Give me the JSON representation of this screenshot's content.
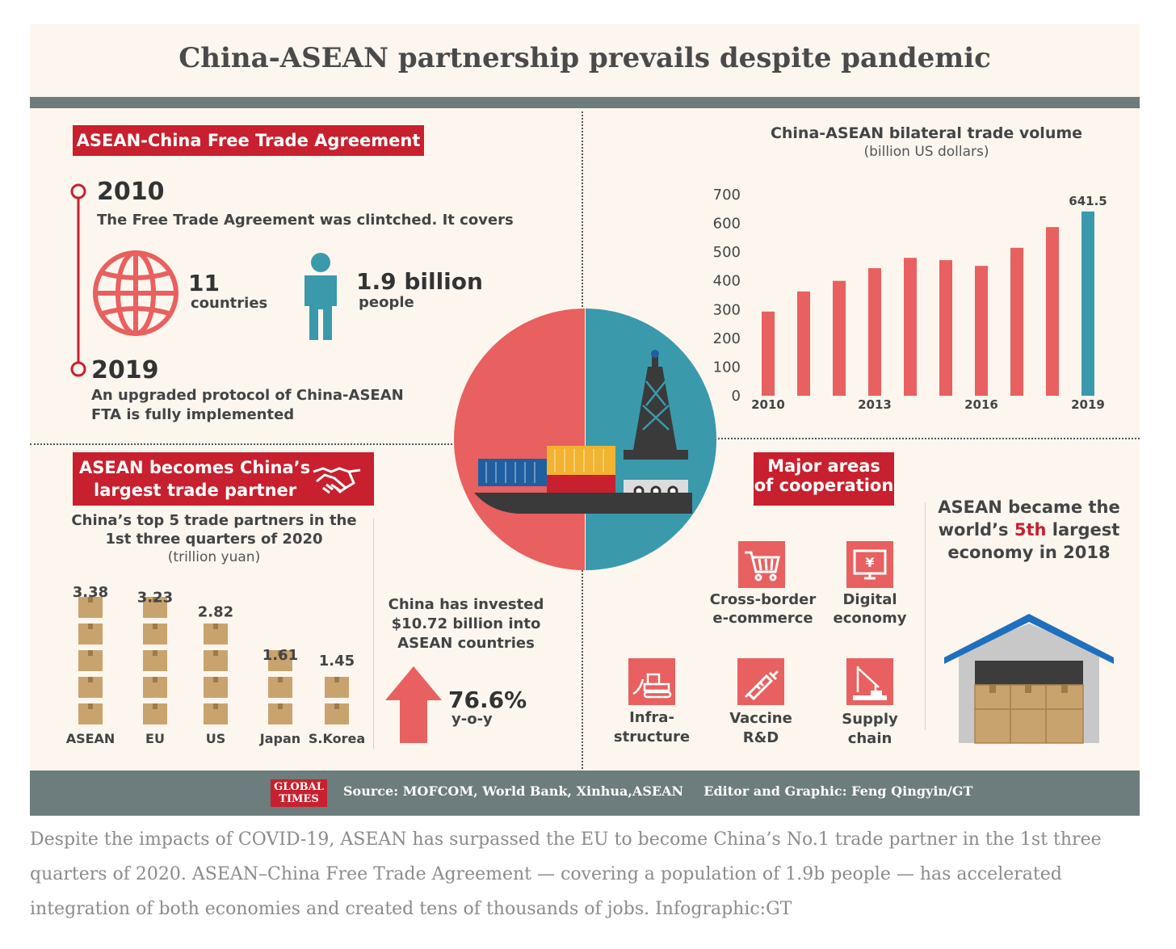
{
  "title": "China-ASEAN partnership prevails despite pandemic",
  "fta": {
    "heading": "ASEAN-China  Free Trade Agreement",
    "year1": "2010",
    "year1_text": "The Free Trade Agreement was clintched. It covers",
    "countries_num": "11",
    "countries_label": "countries",
    "people_num": "1.9 billion",
    "people_label": "people",
    "year2": "2019",
    "year2_text_line1": "An upgraded protocol of China-ASEAN",
    "year2_text_line2": "FTA is fully implemented"
  },
  "partner": {
    "heading_line1": "ASEAN becomes China’s",
    "heading_line2": "largest trade partner",
    "sub_line1": "China’s top 5 trade partners in the",
    "sub_line2": "1st three quarters of 2020",
    "sub_unit": "(trillion yuan)"
  },
  "invest": {
    "line1": "China has invested",
    "line2": "$10.72 billion into",
    "line3": "ASEAN countries",
    "pct": "76.6%",
    "pct_label": "y-o-y"
  },
  "cooperation": {
    "heading_line1": "Major areas",
    "heading_line2": "of cooperation",
    "items": [
      {
        "line1": "Cross-border",
        "line2": "e-commerce",
        "icon": "shopping-cart-icon"
      },
      {
        "line1": "Digital",
        "line2": "economy",
        "icon": "digital-screen-icon"
      },
      {
        "line1": "Infra-",
        "line2": "structure",
        "icon": "bulldozer-icon"
      },
      {
        "line1": "Vaccine",
        "line2": "R&D",
        "icon": "syringe-icon"
      },
      {
        "line1": "Supply",
        "line2": "chain",
        "icon": "crane-icon"
      }
    ]
  },
  "economy": {
    "line1": "ASEAN became the",
    "line2_pre": "world’s ",
    "line2_hl": "5th",
    "line2_post": " largest",
    "line3": "economy in 2018"
  },
  "footer": {
    "logo_line1": "GLOBAL",
    "logo_line2": "TIMES",
    "source": "Source: MOFCOM, World Bank, Xinhua,ASEAN",
    "editor": "Editor and Graphic: Feng Qingyin/GT"
  },
  "caption": "Despite the impacts of COVID-19, ASEAN has surpassed the EU to become China’s No.1 trade partner in the 1st three quarters of 2020. ASEAN–China Free Trade Agreement — covering a population of 1.9b people — has accelerated integration of both economies and created tens of thousands of jobs. Infographic:GT",
  "colors": {
    "red": "#e8605f",
    "teal": "#3a9aab",
    "tag": "#c8202e",
    "box": "#c9a36e"
  },
  "chart_data": [
    {
      "type": "bar",
      "title": "China-ASEAN bilateral trade volume",
      "subtitle": "(billion US dollars)",
      "categories": [
        "2010",
        "2011",
        "2012",
        "2013",
        "2014",
        "2015",
        "2016",
        "2017",
        "2018",
        "2019"
      ],
      "tick_labels": [
        "2010",
        "",
        "",
        "2013",
        "",
        "",
        "2016",
        "",
        "",
        "2019"
      ],
      "values": [
        293,
        363,
        400,
        444,
        480,
        472,
        452,
        515,
        587,
        641.5
      ],
      "highlight_label": "641.5",
      "yticks": [
        "0",
        "100",
        "200",
        "300",
        "400",
        "500",
        "600",
        "700"
      ],
      "ylim": [
        0,
        700
      ]
    },
    {
      "type": "bar",
      "title": "China’s top 5 trade partners in the 1st three quarters of 2020",
      "subtitle": "(trillion yuan)",
      "categories": [
        "ASEAN",
        "EU",
        "US",
        "Japan",
        "S.Korea"
      ],
      "values": [
        3.38,
        3.23,
        2.82,
        1.61,
        1.45
      ],
      "value_labels": [
        "3.38",
        "3.23",
        "2.82",
        "1.61",
        "1.45"
      ]
    }
  ]
}
